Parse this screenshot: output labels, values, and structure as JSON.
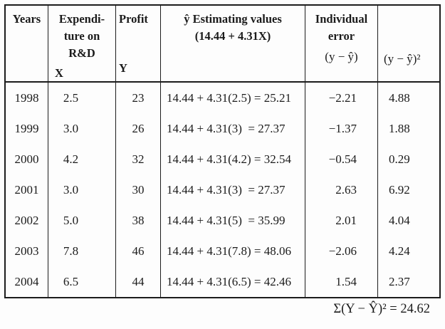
{
  "table": {
    "headers": {
      "years": "Years",
      "expenditure_line1": "Expendi-",
      "expenditure_line2": "ture on",
      "expenditure_line3": "R&D",
      "expenditure_var": "X",
      "profit": "Profit",
      "profit_var": "Y",
      "estimating_line1": "ŷ Estimating values",
      "estimating_line2": "(14.44 + 4.31X)",
      "error_line1": "Individual",
      "error_line2": "error",
      "error_formula": "(y − ŷ)",
      "squared_error": "(y − ŷ)²"
    },
    "rows": [
      {
        "year": "1998",
        "x": "2.5",
        "y": "23",
        "estimate": "14.44 + 4.31(2.5) = 25.21",
        "error": "−2.21",
        "squared": "4.88"
      },
      {
        "year": "1999",
        "x": "3.0",
        "y": "26",
        "estimate": "14.44 + 4.31(3)  = 27.37",
        "error": "−1.37",
        "squared": "1.88"
      },
      {
        "year": "2000",
        "x": "4.2",
        "y": "32",
        "estimate": "14.44 + 4.31(4.2) = 32.54",
        "error": "−0.54",
        "squared": "0.29"
      },
      {
        "year": "2001",
        "x": "3.0",
        "y": "30",
        "estimate": "14.44 + 4.31(3)  = 27.37",
        "error": "2.63",
        "squared": "6.92"
      },
      {
        "year": "2002",
        "x": "5.0",
        "y": "38",
        "estimate": "14.44 + 4.31(5)  = 35.99",
        "error": "2.01",
        "squared": "4.04"
      },
      {
        "year": "2003",
        "x": "7.8",
        "y": "46",
        "estimate": "14.44 + 4.31(7.8) = 48.06",
        "error": "−2.06",
        "squared": "4.24"
      },
      {
        "year": "2004",
        "x": "6.5",
        "y": "44",
        "estimate": "14.44 + 4.31(6.5) = 42.46",
        "error": "1.54",
        "squared": "2.37"
      }
    ],
    "footer": "Σ(Y − Ŷ)² = 24.62"
  }
}
